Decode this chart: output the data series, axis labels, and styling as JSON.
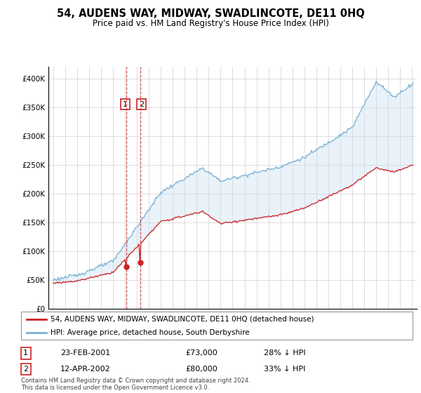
{
  "title": "54, AUDENS WAY, MIDWAY, SWADLINCOTE, DE11 0HQ",
  "subtitle": "Price paid vs. HM Land Registry's House Price Index (HPI)",
  "legend_label_red": "54, AUDENS WAY, MIDWAY, SWADLINCOTE, DE11 0HQ (detached house)",
  "legend_label_blue": "HPI: Average price, detached house, South Derbyshire",
  "transaction1_date": "23-FEB-2001",
  "transaction1_price": 73000,
  "transaction1_hpi": "28% ↓ HPI",
  "transaction2_date": "12-APR-2002",
  "transaction2_price": 80000,
  "transaction2_hpi": "33% ↓ HPI",
  "footer": "Contains HM Land Registry data © Crown copyright and database right 2024.\nThis data is licensed under the Open Government Licence v3.0.",
  "red_color": "#cc2222",
  "blue_color": "#7ab0d4",
  "shading_color": "#c8dff0",
  "ylim": [
    0,
    420000
  ],
  "xlim_start": 1994.6,
  "xlim_end": 2025.4,
  "t1": 2001.12,
  "t2": 2002.28,
  "p1": 73000,
  "p2": 80000
}
